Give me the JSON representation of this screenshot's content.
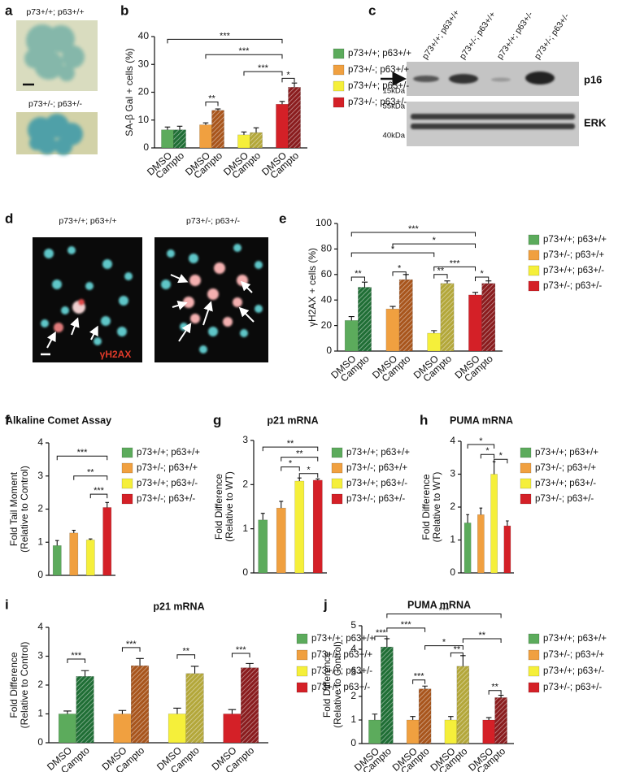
{
  "figure": {
    "a": {
      "label": "a",
      "captions": [
        "p73+/+; p63+/+",
        "p73+/-; p63+/-"
      ]
    },
    "c": {
      "label": "c",
      "lanes": [
        "p73+/+; p63+/+",
        "p73+/-; p63+/+",
        "p73+/+; p63+/-",
        "p73+/-; p63+/-"
      ],
      "bands": [
        "p16",
        "ERK"
      ],
      "markers": [
        "15kDa",
        "55kDa",
        "40kDa"
      ]
    },
    "d": {
      "label": "d",
      "captions": [
        "p73+/+; p63+/+",
        "p73+/-; p63+/-"
      ],
      "stain": "γH2AX"
    }
  },
  "chart_data": [
    {
      "type": "bar",
      "panel": "b",
      "ylabel": [
        "SA-β Gal + cells (%)"
      ],
      "ylim": [
        0,
        40
      ],
      "yticks": [
        0,
        10,
        20,
        30,
        40
      ],
      "categories": [
        "DMSO",
        "Campto"
      ],
      "series": [
        {
          "name": "p73+/+; p63+/+",
          "colors": [
            "#5cab5c",
            "#1f6e35"
          ],
          "values": [
            6.5,
            6.5
          ],
          "errors": [
            1,
            1.3
          ]
        },
        {
          "name": "p73+/-; p63+/+",
          "colors": [
            "#f0a040",
            "#a8551c"
          ],
          "values": [
            8.3,
            13.5
          ],
          "errors": [
            0.7,
            0.5
          ]
        },
        {
          "name": "p73+/+; p63+/-",
          "colors": [
            "#f5ef3a",
            "#b3a73a"
          ],
          "values": [
            4.7,
            5.5
          ],
          "errors": [
            1,
            1.7
          ]
        },
        {
          "name": "p73+/-; p63+/-",
          "colors": [
            "#d42027",
            "#8a1c1e"
          ],
          "values": [
            15.7,
            21.8
          ],
          "errors": [
            1,
            1.5
          ]
        }
      ],
      "annotations": [
        "***",
        "***",
        "***",
        "**",
        "*"
      ]
    },
    {
      "type": "bar",
      "panel": "e",
      "ylabel": [
        "γH2AX + cells (%)"
      ],
      "ylim": [
        0,
        100
      ],
      "yticks": [
        0,
        20,
        40,
        60,
        80,
        100
      ],
      "categories": [
        "DMSO",
        "Campto"
      ],
      "series": [
        {
          "name": "p73+/+; p63+/+",
          "colors": [
            "#5cab5c",
            "#1f6e35"
          ],
          "values": [
            24,
            50
          ],
          "errors": [
            3,
            4
          ]
        },
        {
          "name": "p73+/-; p63+/+",
          "colors": [
            "#f0a040",
            "#a8551c"
          ],
          "values": [
            33,
            56
          ],
          "errors": [
            2,
            4
          ]
        },
        {
          "name": "p73+/+; p63+/-",
          "colors": [
            "#f5ef3a",
            "#b3a73a"
          ],
          "values": [
            14,
            53
          ],
          "errors": [
            2,
            2
          ]
        },
        {
          "name": "p73+/-; p63+/-",
          "colors": [
            "#d42027",
            "#8a1c1e"
          ],
          "values": [
            44,
            53
          ],
          "errors": [
            2,
            2
          ]
        }
      ],
      "annotations": [
        "***",
        "*",
        "*",
        "***",
        "**",
        "*",
        "**",
        "*"
      ]
    },
    {
      "type": "bar",
      "panel": "f",
      "title": "Alkaline Comet Assay",
      "ylabel": [
        "Fold Tail Moment",
        "(Relative to Control)"
      ],
      "ylim": [
        0,
        4
      ],
      "yticks": [
        0,
        1,
        2,
        3,
        4
      ],
      "series": [
        {
          "name": "p73+/+; p63+/+",
          "color": "#5cab5c",
          "values": [
            0.9
          ],
          "errors": [
            0.15
          ]
        },
        {
          "name": "p73+/-; p63+/+",
          "color": "#f0a040",
          "values": [
            1.28
          ],
          "errors": [
            0.08
          ]
        },
        {
          "name": "p73+/+; p63+/-",
          "color": "#f5ef3a",
          "values": [
            1.07
          ],
          "errors": [
            0.03
          ]
        },
        {
          "name": "p73+/-; p63+/-",
          "color": "#d42027",
          "values": [
            2.05
          ],
          "errors": [
            0.15
          ]
        }
      ],
      "annotations": [
        "***",
        "**",
        "***"
      ]
    },
    {
      "type": "bar",
      "panel": "g",
      "title": "p21 mRNA",
      "ylabel": [
        "Fold Difference",
        "(Relative to WT)"
      ],
      "ylim": [
        0,
        3
      ],
      "yticks": [
        0,
        1,
        2,
        3
      ],
      "series": [
        {
          "name": "p73+/+; p63+/+",
          "color": "#5cab5c",
          "values": [
            1.2
          ],
          "errors": [
            0.15
          ]
        },
        {
          "name": "p73+/-; p63+/+",
          "color": "#f0a040",
          "values": [
            1.47
          ],
          "errors": [
            0.15
          ]
        },
        {
          "name": "p73+/+; p63+/-",
          "color": "#f5ef3a",
          "values": [
            2.08
          ],
          "errors": [
            0.07
          ]
        },
        {
          "name": "p73+/-; p63+/-",
          "color": "#d42027",
          "values": [
            2.1
          ],
          "errors": [
            0.03
          ]
        }
      ],
      "annotations": [
        "**",
        "**",
        "*",
        "*"
      ]
    },
    {
      "type": "bar",
      "panel": "h",
      "title": "PUMA mRNA",
      "ylabel": [
        "Fold Difference",
        "(Relative to WT)"
      ],
      "ylim": [
        0,
        4
      ],
      "yticks": [
        0,
        1,
        2,
        3,
        4
      ],
      "series": [
        {
          "name": "p73+/+; p63+/+",
          "color": "#5cab5c",
          "values": [
            1.52
          ],
          "errors": [
            0.25
          ]
        },
        {
          "name": "p73+/-; p63+/+",
          "color": "#f0a040",
          "values": [
            1.77
          ],
          "errors": [
            0.2
          ]
        },
        {
          "name": "p73+/+; p63+/-",
          "color": "#f5ef3a",
          "values": [
            3.0
          ],
          "errors": [
            0.38
          ]
        },
        {
          "name": "p73+/-; p63+/-",
          "color": "#d42027",
          "values": [
            1.43
          ],
          "errors": [
            0.15
          ]
        }
      ],
      "annotations": [
        "*",
        "*",
        "*"
      ]
    },
    {
      "type": "bar",
      "panel": "i",
      "title": "p21 mRNA",
      "ylabel": [
        "Fold Difference",
        "(Relative to Control)"
      ],
      "ylim": [
        0,
        4
      ],
      "yticks": [
        0,
        1,
        2,
        3,
        4
      ],
      "categories": [
        "DMSO",
        "Campto"
      ],
      "series": [
        {
          "name": "p73+/+; p63+/+",
          "colors": [
            "#5cab5c",
            "#1f6e35"
          ],
          "values": [
            1,
            2.3
          ],
          "errors": [
            0.1,
            0.2
          ]
        },
        {
          "name": "p73+/-; p63+/+",
          "colors": [
            "#f0a040",
            "#a8551c"
          ],
          "values": [
            1,
            2.67
          ],
          "errors": [
            0.12,
            0.25
          ]
        },
        {
          "name": "p73+/+; p63+/-",
          "colors": [
            "#f5ef3a",
            "#b3a73a"
          ],
          "values": [
            1,
            2.4
          ],
          "errors": [
            0.2,
            0.25
          ]
        },
        {
          "name": "p73+/-; p63+/-",
          "colors": [
            "#d42027",
            "#8a1c1e"
          ],
          "values": [
            1,
            2.6
          ],
          "errors": [
            0.15,
            0.15
          ]
        }
      ],
      "annotations": [
        "***",
        "***",
        "**",
        "***"
      ]
    },
    {
      "type": "bar",
      "panel": "j",
      "title": "PUMA mRNA",
      "ylabel": [
        "Fold Difference",
        "(Relative to Control)"
      ],
      "ylim": [
        0,
        5
      ],
      "yticks": [
        0,
        1,
        2,
        3,
        4,
        5
      ],
      "categories": [
        "DMSO",
        "Campto"
      ],
      "series": [
        {
          "name": "p73+/+; p63+/+",
          "colors": [
            "#5cab5c",
            "#1f6e35"
          ],
          "values": [
            1,
            4.1
          ],
          "errors": [
            0.25,
            0.35
          ]
        },
        {
          "name": "p73+/-; p63+/+",
          "colors": [
            "#f0a040",
            "#a8551c"
          ],
          "values": [
            1,
            2.32
          ],
          "errors": [
            0.15,
            0.12
          ]
        },
        {
          "name": "p73+/+; p63+/-",
          "colors": [
            "#f5ef3a",
            "#b3a73a"
          ],
          "values": [
            1,
            3.28
          ],
          "errors": [
            0.15,
            0.45
          ]
        },
        {
          "name": "p73+/-; p63+/-",
          "colors": [
            "#d42027",
            "#8a1c1e"
          ],
          "values": [
            1,
            1.95
          ],
          "errors": [
            0.1,
            0.1
          ]
        }
      ],
      "annotations": [
        "***",
        "***",
        "***",
        "**",
        "*",
        "***",
        "**",
        "**"
      ]
    }
  ]
}
